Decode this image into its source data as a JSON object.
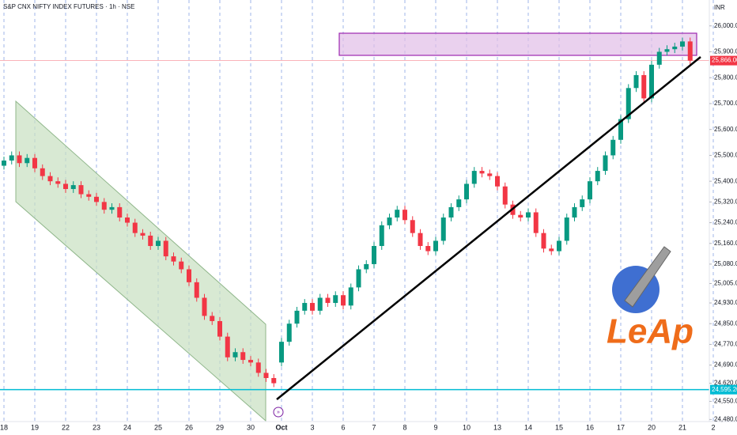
{
  "chart_data": {
    "type": "candlestick",
    "title": "S&P CNX NIFTY INDEX FUTURES · 1h · NSE",
    "currency": "INR",
    "logo_text": "LeAp",
    "categories": [
      "18",
      "19",
      "22",
      "23",
      "24",
      "25",
      "26",
      "29",
      "30",
      "Oct",
      "3",
      "6",
      "7",
      "8",
      "9",
      "10",
      "13",
      "14",
      "15",
      "16",
      "17",
      "20",
      "21",
      "2"
    ],
    "up_color": "#089981",
    "down_color": "#f23645",
    "open": [
      25460,
      25480,
      25500,
      25470,
      25490,
      25450,
      25420,
      25400,
      25390,
      25370,
      25385,
      25350,
      25340,
      25320,
      25290,
      25300,
      25260,
      25240,
      25200,
      25190,
      25150,
      25170,
      25110,
      25090,
      25060,
      25010,
      24950,
      24880,
      24860,
      24800,
      24720,
      24740,
      24710,
      24700,
      24660,
      24640,
      24700,
      24780,
      24850,
      24900,
      24930,
      24900,
      24950,
      24930,
      24960,
      24920,
      24990,
      25060,
      25080,
      25150,
      25230,
      25260,
      25290,
      25250,
      25200,
      25150,
      25130,
      25170,
      25260,
      25300,
      25330,
      25390,
      25440,
      25430,
      25420,
      25380,
      25310,
      25270,
      25260,
      25280,
      25200,
      25140,
      25130,
      25170,
      25260,
      25300,
      25330,
      25400,
      25440,
      25500,
      25560,
      25640,
      25760,
      25810,
      25720,
      25850,
      25900,
      25910,
      25920,
      25940
    ],
    "high": [
      25495,
      25515,
      25515,
      25505,
      25505,
      25465,
      25435,
      25415,
      25405,
      25400,
      25400,
      25365,
      25355,
      25335,
      25315,
      25315,
      25275,
      25255,
      25215,
      25205,
      25185,
      25185,
      25125,
      25105,
      25075,
      25025,
      24965,
      24895,
      24875,
      24815,
      24755,
      24755,
      24725,
      24715,
      24675,
      24655,
      24795,
      24865,
      24915,
      24945,
      24945,
      24965,
      24965,
      24975,
      24975,
      25005,
      25075,
      25095,
      25165,
      25245,
      25275,
      25305,
      25305,
      25265,
      25215,
      25165,
      25185,
      25275,
      25315,
      25345,
      25405,
      25455,
      25455,
      25445,
      25435,
      25395,
      25325,
      25285,
      25295,
      25295,
      25215,
      25155,
      25185,
      25275,
      25315,
      25345,
      25415,
      25455,
      25515,
      25575,
      25655,
      25775,
      25825,
      25825,
      25865,
      25915,
      25925,
      25935,
      25955,
      25955
    ],
    "low": [
      25445,
      25465,
      25455,
      25455,
      25435,
      25405,
      25385,
      25375,
      25355,
      25355,
      25335,
      25325,
      25305,
      25275,
      25275,
      25245,
      25225,
      25185,
      25175,
      25135,
      25135,
      25095,
      25075,
      25045,
      24995,
      24935,
      24865,
      24845,
      24785,
      24705,
      24705,
      24695,
      24685,
      24645,
      24625,
      24605,
      24685,
      24765,
      24835,
      24885,
      24885,
      24885,
      24915,
      24915,
      24905,
      24905,
      24975,
      25045,
      25065,
      25135,
      25215,
      25245,
      25235,
      25185,
      25135,
      25115,
      25115,
      25155,
      25245,
      25285,
      25315,
      25375,
      25415,
      25405,
      25365,
      25295,
      25255,
      25245,
      25245,
      25185,
      25125,
      25115,
      25115,
      25155,
      25245,
      25285,
      25315,
      25385,
      25425,
      25485,
      25545,
      25625,
      25745,
      25705,
      25705,
      25835,
      25885,
      25895,
      25905,
      25851
    ],
    "close": [
      25480,
      25500,
      25470,
      25490,
      25450,
      25420,
      25400,
      25390,
      25370,
      25385,
      25350,
      25340,
      25320,
      25290,
      25300,
      25260,
      25240,
      25200,
      25190,
      25150,
      25170,
      25110,
      25090,
      25060,
      25010,
      24950,
      24880,
      24860,
      24800,
      24720,
      24740,
      24710,
      24700,
      24660,
      24640,
      24620,
      24780,
      24850,
      24900,
      24930,
      24900,
      24950,
      24930,
      24960,
      24920,
      24990,
      25060,
      25080,
      25150,
      25230,
      25260,
      25290,
      25250,
      25200,
      25150,
      25130,
      25170,
      25260,
      25300,
      25330,
      25390,
      25440,
      25430,
      25420,
      25380,
      25310,
      25270,
      25260,
      25280,
      25200,
      25140,
      25130,
      25170,
      25260,
      25300,
      25330,
      25400,
      25440,
      25500,
      25560,
      25640,
      25760,
      25810,
      25720,
      25850,
      25900,
      25910,
      25920,
      25940,
      25866
    ],
    "ylim": [
      24475,
      26100
    ],
    "yticks": [
      {
        "value": 26000,
        "label": "26,000.00"
      },
      {
        "value": 25900,
        "label": "25,900.00"
      },
      {
        "value": 25800,
        "label": "25,800.00"
      },
      {
        "value": 25700,
        "label": "25,700.00"
      },
      {
        "value": 25600,
        "label": "25,600.00"
      },
      {
        "value": 25500,
        "label": "25,500.00"
      },
      {
        "value": 25400,
        "label": "25,400.00"
      },
      {
        "value": 25320,
        "label": "25,320.00"
      },
      {
        "value": 25240,
        "label": "25,240.00"
      },
      {
        "value": 25160,
        "label": "25,160.00"
      },
      {
        "value": 25080,
        "label": "25,080.00"
      },
      {
        "value": 25005,
        "label": "25,005.00"
      },
      {
        "value": 24930,
        "label": "24,930.00"
      },
      {
        "value": 24850,
        "label": "24,850.00"
      },
      {
        "value": 24770,
        "label": "24,770.00"
      },
      {
        "value": 24690,
        "label": "24,690.00"
      },
      {
        "value": 24620,
        "label": "24,620.00"
      },
      {
        "value": 24550,
        "label": "24,550.00"
      },
      {
        "value": 24480,
        "label": "24,480.00"
      }
    ],
    "price_lines": [
      {
        "value": 25866,
        "label": "25,866.00",
        "color": "#f23645"
      },
      {
        "value": 24595.2,
        "label": "24,595.20",
        "color": "#00bcd4"
      }
    ],
    "grid": "x"
  }
}
